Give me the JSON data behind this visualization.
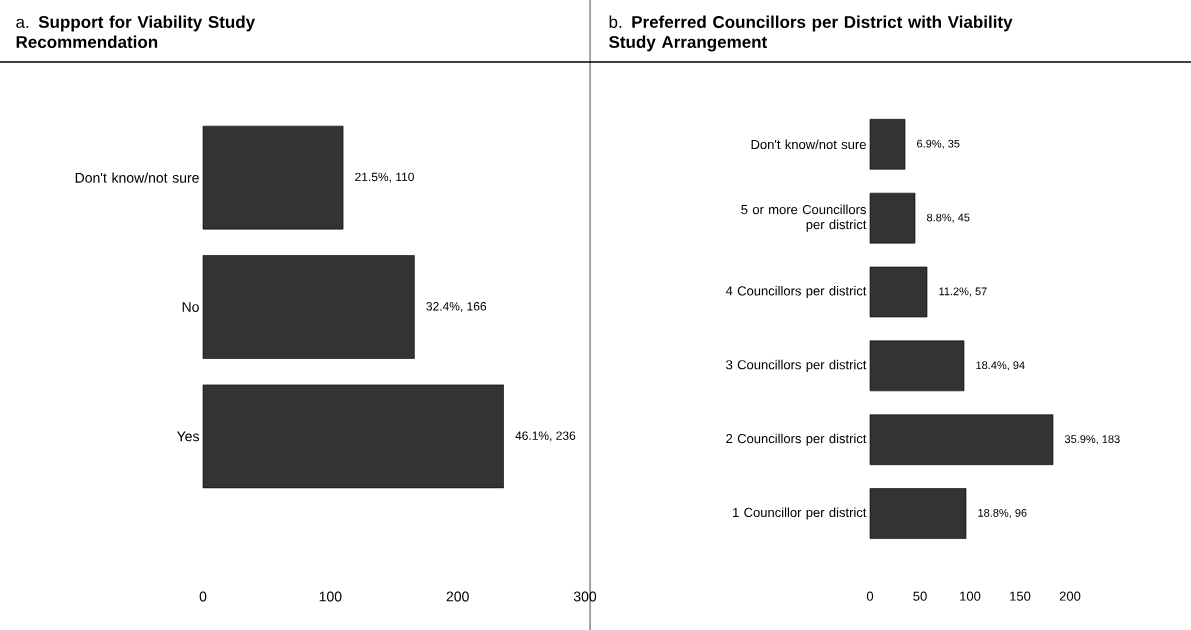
{
  "chart_data": [
    {
      "type": "bar",
      "orientation": "horizontal",
      "title": "a. **Support for Viability Study Recommendation**",
      "categories": [
        "Don't know/not sure",
        "No",
        "Yes"
      ],
      "values": [
        110,
        166,
        236
      ],
      "color": "#333333",
      "value_labels": [
        "21.5%, 110",
        "32.4%, 166",
        "46.1%, 236"
      ],
      "xlim": [
        0,
        300
      ],
      "xticks": [
        0,
        100,
        200,
        300
      ]
    },
    {
      "type": "bar",
      "orientation": "horizontal",
      "title": "b. **Preferred Councillors per District with Viability Study Arrangement**",
      "categories": [
        "Don't know/not sure",
        "5 or more Councillors per district",
        "4 Councillors per district",
        "3 Councillors per district",
        "2 Councillors per district",
        "1 Councillor per district"
      ],
      "values": [
        35,
        45,
        57,
        94,
        183,
        96
      ],
      "color": "#333333",
      "value_labels": [
        "6.9%, 35",
        "8.8%, 45",
        "11.2%, 57",
        "18.4%, 94",
        "35.9%, 183",
        "18.8%, 96"
      ],
      "xlim": [
        0,
        200
      ],
      "xticks": [
        0,
        50,
        100,
        150,
        200
      ]
    }
  ]
}
